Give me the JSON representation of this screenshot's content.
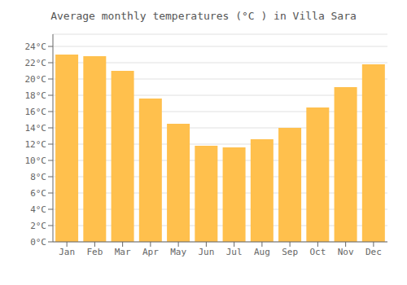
{
  "chart_data": {
    "type": "bar",
    "title": "Average monthly temperatures (°C ) in Villa Sara",
    "categories": [
      "Jan",
      "Feb",
      "Mar",
      "Apr",
      "May",
      "Jun",
      "Jul",
      "Aug",
      "Sep",
      "Oct",
      "Nov",
      "Dec"
    ],
    "values": [
      23.0,
      22.8,
      21.0,
      17.6,
      14.5,
      11.8,
      11.6,
      12.6,
      14.0,
      16.5,
      19.0,
      21.8
    ],
    "color": "#FFC04D",
    "ylim": [
      0,
      25.5
    ],
    "yticks": [
      {
        "value": 0,
        "label": "0°C"
      },
      {
        "value": 2,
        "label": "2°C"
      },
      {
        "value": 4,
        "label": "4°C"
      },
      {
        "value": 6,
        "label": "6°C"
      },
      {
        "value": 8,
        "label": "8°C"
      },
      {
        "value": 10,
        "label": "10°C"
      },
      {
        "value": 12,
        "label": "12°C"
      },
      {
        "value": 14,
        "label": "14°C"
      },
      {
        "value": 16,
        "label": "16°C"
      },
      {
        "value": 18,
        "label": "18°C"
      },
      {
        "value": 20,
        "label": "20°C"
      },
      {
        "value": 22,
        "label": "22°C"
      },
      {
        "value": 24,
        "label": "24°C"
      }
    ],
    "grid": true
  }
}
